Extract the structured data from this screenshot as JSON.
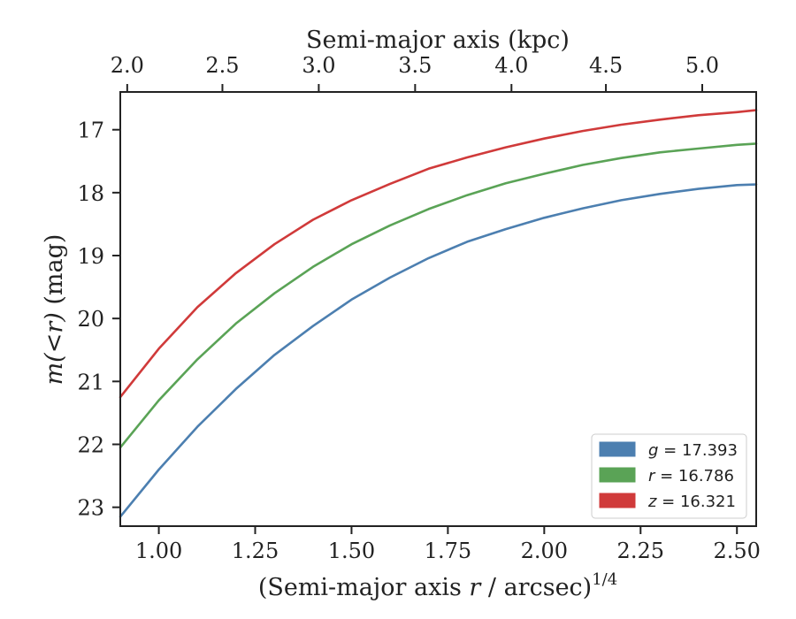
{
  "chart_data": {
    "type": "line",
    "xlabel_bottom": "(Semi-major axis r / arcsec)1/4",
    "xlabel_bottom_parts": {
      "pre": "(Semi-major axis ",
      "var": "r",
      "post": " / arcsec)",
      "sup": "1/4"
    },
    "xlabel_top": "Semi-major axis (kpc)",
    "ylabel": "m(<r) (mag)",
    "ylabel_parts": {
      "var": "m(<r)",
      "unit": " (mag)"
    },
    "xlim": [
      0.9,
      2.55
    ],
    "ylim": [
      23.3,
      16.4
    ],
    "y_inverted": true,
    "x_ticks": [
      "1.00",
      "1.25",
      "1.50",
      "1.75",
      "2.00",
      "2.25",
      "2.50"
    ],
    "x_tick_values": [
      1.0,
      1.25,
      1.5,
      1.75,
      2.0,
      2.25,
      2.5
    ],
    "top_ticks": [
      "2.0",
      "2.5",
      "3.0",
      "3.5",
      "4.0",
      "4.5",
      "5.0"
    ],
    "top_tick_values": [
      2.0,
      2.5,
      3.0,
      3.5,
      4.0,
      4.5,
      5.0
    ],
    "top_tick_positions": [
      0.918,
      1.165,
      1.415,
      1.665,
      1.915,
      2.16,
      2.41
    ],
    "y_ticks": [
      "17",
      "18",
      "19",
      "20",
      "21",
      "22",
      "23"
    ],
    "y_tick_values": [
      17,
      18,
      19,
      20,
      21,
      22,
      23
    ],
    "legend_position": "lower-right",
    "series": [
      {
        "name": "g = 17.393",
        "label_var": "g",
        "label_value": "17.393",
        "color": "#4c7fb0",
        "x": [
          0.9,
          1.0,
          1.1,
          1.2,
          1.3,
          1.4,
          1.5,
          1.6,
          1.7,
          1.8,
          1.9,
          2.0,
          2.1,
          2.2,
          2.3,
          2.4,
          2.5,
          2.55
        ],
        "y": [
          23.15,
          22.4,
          21.72,
          21.12,
          20.58,
          20.12,
          19.7,
          19.35,
          19.04,
          18.78,
          18.58,
          18.4,
          18.25,
          18.12,
          18.02,
          17.94,
          17.88,
          17.87
        ]
      },
      {
        "name": "r = 16.786",
        "label_var": "r",
        "label_value": "16.786",
        "color": "#5aa356",
        "x": [
          0.9,
          1.0,
          1.1,
          1.2,
          1.3,
          1.4,
          1.5,
          1.6,
          1.7,
          1.8,
          1.9,
          2.0,
          2.1,
          2.2,
          2.3,
          2.4,
          2.5,
          2.55
        ],
        "y": [
          22.05,
          21.3,
          20.65,
          20.08,
          19.6,
          19.18,
          18.82,
          18.52,
          18.26,
          18.04,
          17.85,
          17.7,
          17.56,
          17.45,
          17.36,
          17.3,
          17.24,
          17.22
        ]
      },
      {
        "name": "z = 16.321",
        "label_var": "z",
        "label_value": "16.321",
        "color": "#d03a3a",
        "x": [
          0.9,
          1.0,
          1.1,
          1.2,
          1.3,
          1.4,
          1.5,
          1.6,
          1.7,
          1.8,
          1.9,
          2.0,
          2.1,
          2.2,
          2.3,
          2.4,
          2.5,
          2.55
        ],
        "y": [
          21.25,
          20.48,
          19.82,
          19.28,
          18.82,
          18.43,
          18.12,
          17.86,
          17.62,
          17.44,
          17.28,
          17.14,
          17.02,
          16.92,
          16.84,
          16.77,
          16.72,
          16.69
        ]
      }
    ]
  }
}
